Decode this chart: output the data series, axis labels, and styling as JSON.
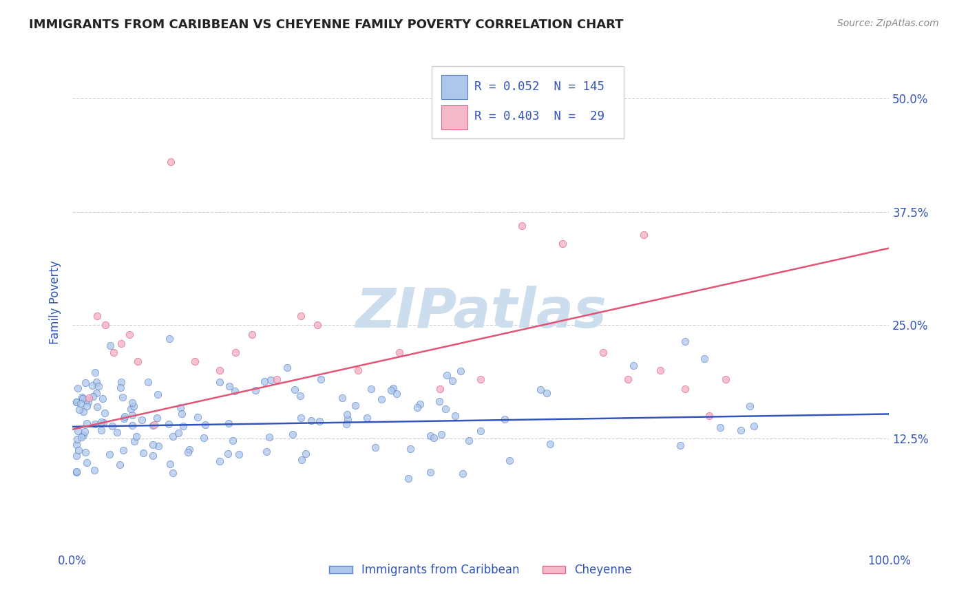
{
  "title": "IMMIGRANTS FROM CARIBBEAN VS CHEYENNE FAMILY POVERTY CORRELATION CHART",
  "source_text": "Source: ZipAtlas.com",
  "ylabel": "Family Poverty",
  "xlim": [
    0,
    100
  ],
  "ylim": [
    0,
    55
  ],
  "yticks": [
    12.5,
    25.0,
    37.5,
    50.0
  ],
  "xtick_labels": [
    "0.0%",
    "100.0%"
  ],
  "ytick_labels": [
    "12.5%",
    "25.0%",
    "37.5%",
    "50.0%"
  ],
  "blue_fill": "#aec6ea",
  "blue_edge": "#5580c8",
  "pink_fill": "#f4b8c8",
  "pink_edge": "#e06888",
  "blue_trend_color": "#3355bb",
  "pink_trend_color": "#e05575",
  "legend_label1": "Immigrants from Caribbean",
  "legend_label2": "Cheyenne",
  "watermark": "ZIPatlas",
  "watermark_color": "#ccdded",
  "background_color": "#ffffff",
  "grid_color": "#bbbbbb",
  "title_color": "#222222",
  "label_color": "#3355bb",
  "source_color": "#888888",
  "blue_trend_start_y": 13.8,
  "blue_trend_end_y": 15.2,
  "pink_trend_start_y": 13.5,
  "pink_trend_end_y": 33.5,
  "blue_N": 145,
  "pink_N": 29,
  "blue_seed": 42,
  "pink_seed": 17
}
